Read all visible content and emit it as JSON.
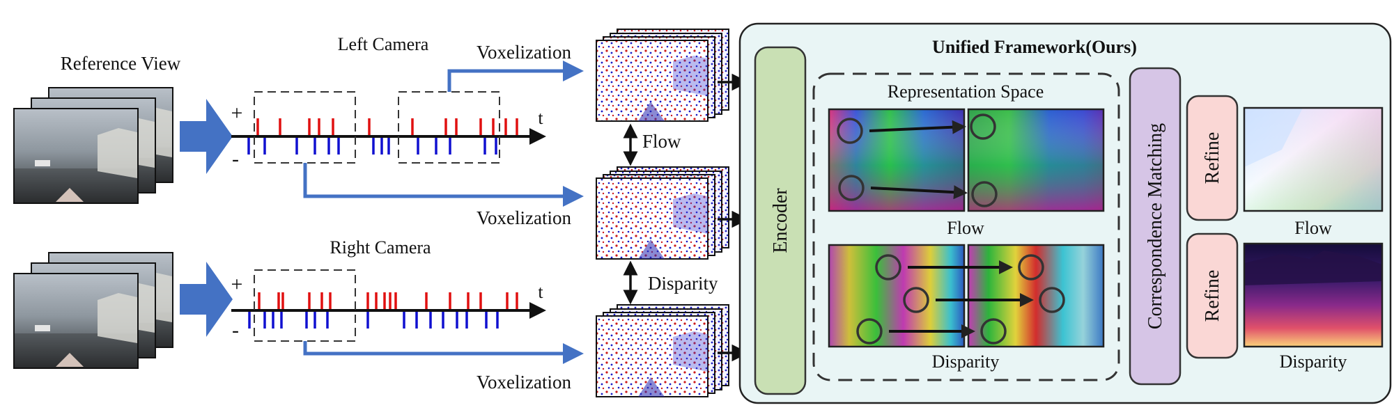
{
  "left": {
    "reference_view": "Reference View",
    "left_camera": "Left Camera",
    "right_camera": "Right Camera",
    "plus_sign": "+",
    "minus_sign": "-",
    "time_axis": "t"
  },
  "middle": {
    "voxelization": "Voxelization",
    "flow": "Flow",
    "disparity": "Disparity"
  },
  "framework": {
    "title": "Unified Framework(Ours)",
    "encoder": "Encoder",
    "representation_space": "Representation Space",
    "flow_label": "Flow",
    "disparity_label": "Disparity",
    "correspondence": "Correspondence Matching",
    "refine": "Refine",
    "output_flow": "Flow",
    "output_disparity": "Disparity"
  },
  "colors": {
    "panel_bg": "#e9f5f5",
    "encoder_fill": "#c9e0b4",
    "matching_fill": "#d6c5e6",
    "refine_fill": "#fad7d5",
    "blue_arrow": "#4472c4",
    "pos_event": "#e01010",
    "neg_event": "#1010d0"
  }
}
